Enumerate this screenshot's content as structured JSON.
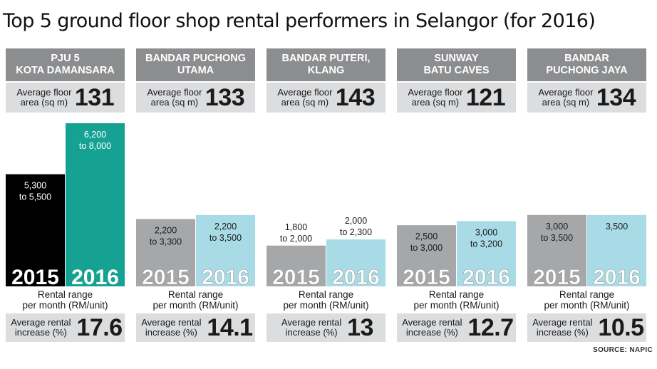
{
  "title": "Top 5 ground floor shop rental performers in Selangor (for 2016)",
  "source": "SOURCE: NAPIC",
  "colors": {
    "header_bg": "#8c8d8f",
    "panel_bg": "#dcdddf",
    "bar_2015_first": "#000000",
    "bar_2016_first": "#16a292",
    "bar_2015_other": "#a6a7a9",
    "bar_2016_other": "#a8dbe6"
  },
  "chart_data": {
    "type": "bar",
    "title": "Top 5 ground floor shop rental performers in Selangor (for 2016)",
    "series_names": [
      "2015",
      "2016"
    ],
    "area_label": "Average floor area (sq m)",
    "rental_label": "Rental range per month (RM/unit)",
    "increase_label": "Average rental increase (%)",
    "locations": [
      {
        "name_line1": "PJU 5",
        "name_line2": "KOTA DAMANSARA",
        "area": "131",
        "range_2015": {
          "low": 5300,
          "high": 5500,
          "line1": "5,300",
          "line2": "to 5,500"
        },
        "range_2016": {
          "low": 6200,
          "high": 8000,
          "line1": "6,200",
          "line2": "to 8,000"
        },
        "increase": "17.6"
      },
      {
        "name_line1": "BANDAR PUCHONG",
        "name_line2": "UTAMA",
        "area": "133",
        "range_2015": {
          "low": 2200,
          "high": 3300,
          "line1": "2,200",
          "line2": "to 3,300"
        },
        "range_2016": {
          "low": 2200,
          "high": 3500,
          "line1": "2,200",
          "line2": "to 3,500"
        },
        "increase": "14.1"
      },
      {
        "name_line1": "BANDAR PUTERI,",
        "name_line2": "KLANG",
        "area": "143",
        "range_2015": {
          "low": 1800,
          "high": 2000,
          "line1": "1,800",
          "line2": "to 2,000"
        },
        "range_2016": {
          "low": 2000,
          "high": 2300,
          "line1": "2,000",
          "line2": "to 2,300"
        },
        "increase": "13"
      },
      {
        "name_line1": "SUNWAY",
        "name_line2": "BATU CAVES",
        "area": "121",
        "range_2015": {
          "low": 2500,
          "high": 3000,
          "line1": "2,500",
          "line2": "to 3,000"
        },
        "range_2016": {
          "low": 3000,
          "high": 3200,
          "line1": "3,000",
          "line2": "to 3,200"
        },
        "increase": "12.7"
      },
      {
        "name_line1": "BANDAR",
        "name_line2": "PUCHONG JAYA",
        "area": "134",
        "range_2015": {
          "low": 3000,
          "high": 3500,
          "line1": "3,000",
          "line2": "to 3,500"
        },
        "range_2016": {
          "low": 3500,
          "high": 3500,
          "line1": "3,500",
          "line2": ""
        },
        "increase": "10.5"
      }
    ]
  }
}
